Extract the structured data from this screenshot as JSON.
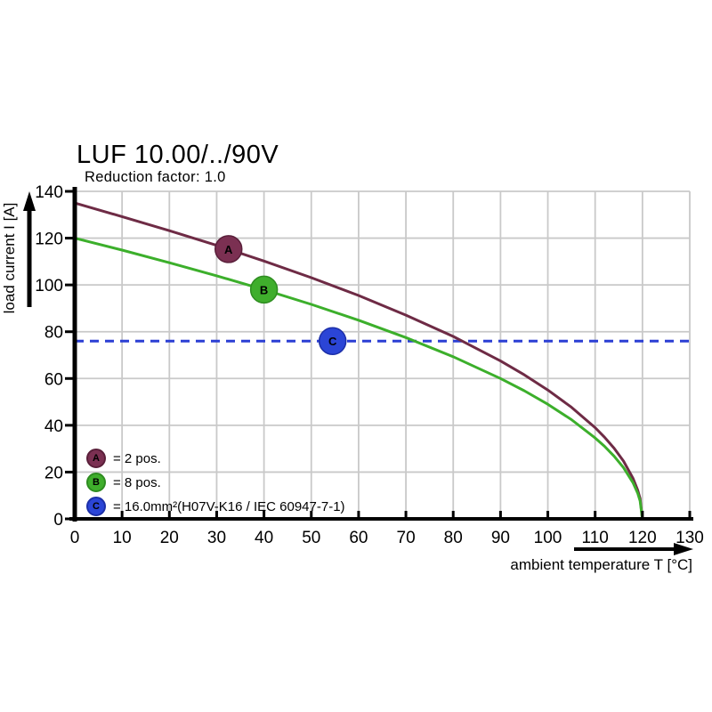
{
  "header": {
    "title": "LUF 10.00/../90V",
    "subtitle": "Reduction factor: 1.0"
  },
  "legend": {
    "items": [
      {
        "key": "A",
        "label": "= 2 pos.",
        "color": "#7B3052",
        "border": "#5A1F3A"
      },
      {
        "key": "B",
        "label": "= 8 pos.",
        "color": "#3FAE2C",
        "border": "#2E8C20"
      },
      {
        "key": "C",
        "label": "= 16.0mm²(H07V-K16 / IEC 60947-7-1)",
        "color": "#2B45D6",
        "border": "#1C2FA8"
      }
    ]
  },
  "colors": {
    "axis": "#000000",
    "grid": "#c9c9c9",
    "curve_a": "#6E2B45",
    "curve_b": "#3CAF2B",
    "ref_line": "#2B3FD4",
    "background": "#ffffff"
  },
  "chart_data": {
    "type": "line",
    "title": "LUF 10.00/../90V",
    "subtitle": "Reduction factor: 1.0",
    "xlabel": "ambient temperature T [°C]",
    "ylabel": "load current I [A]",
    "xlim": [
      0,
      130
    ],
    "ylim": [
      0,
      140
    ],
    "x_ticks": [
      0,
      10,
      20,
      30,
      40,
      50,
      60,
      70,
      80,
      90,
      100,
      110,
      120,
      130
    ],
    "y_ticks": [
      0,
      20,
      40,
      60,
      80,
      100,
      120,
      140
    ],
    "grid": true,
    "legend_position": "inside bottom-left",
    "series": [
      {
        "name": "A = 2 pos.",
        "color": "#6E2B45",
        "marker": {
          "x": 32.5,
          "y": 115.3,
          "label": "A",
          "fill": "#7B3052",
          "border": "#5A1F3A"
        },
        "points": [
          [
            0,
            135
          ],
          [
            10,
            129.2
          ],
          [
            20,
            123.2
          ],
          [
            30,
            116.9
          ],
          [
            40,
            110.2
          ],
          [
            50,
            103.1
          ],
          [
            60,
            95.5
          ],
          [
            70,
            87.1
          ],
          [
            80,
            78.0
          ],
          [
            90,
            67.5
          ],
          [
            95,
            61.6
          ],
          [
            100,
            55.1
          ],
          [
            105,
            47.7
          ],
          [
            110,
            39.0
          ],
          [
            112,
            34.9
          ],
          [
            114,
            30.2
          ],
          [
            116,
            24.7
          ],
          [
            118,
            17.4
          ],
          [
            119,
            12.3
          ],
          [
            119.5,
            8.7
          ],
          [
            120,
            0
          ]
        ]
      },
      {
        "name": "B = 8 pos.",
        "color": "#3CAF2B",
        "marker": {
          "x": 40,
          "y": 98.0,
          "label": "B",
          "fill": "#3FAE2C",
          "border": "#2E8C20"
        },
        "points": [
          [
            0,
            120
          ],
          [
            10,
            114.9
          ],
          [
            20,
            109.5
          ],
          [
            30,
            103.9
          ],
          [
            40,
            98.0
          ],
          [
            50,
            91.7
          ],
          [
            60,
            84.9
          ],
          [
            70,
            77.5
          ],
          [
            80,
            69.3
          ],
          [
            90,
            60.0
          ],
          [
            95,
            54.8
          ],
          [
            100,
            49.0
          ],
          [
            105,
            42.4
          ],
          [
            110,
            34.6
          ],
          [
            112,
            31.0
          ],
          [
            114,
            26.8
          ],
          [
            116,
            21.9
          ],
          [
            118,
            15.5
          ],
          [
            119,
            11.0
          ],
          [
            119.5,
            7.7
          ],
          [
            120,
            0
          ]
        ]
      }
    ],
    "reference_line": {
      "name": "C = 16.0mm²(H07V-K16 / IEC 60947-7-1)",
      "y": 76,
      "style": "dashed",
      "color": "#2B3FD4",
      "marker": {
        "x": 54.5,
        "y": 76,
        "label": "C",
        "fill": "#2B45D6",
        "border": "#1C2FA8"
      }
    }
  }
}
